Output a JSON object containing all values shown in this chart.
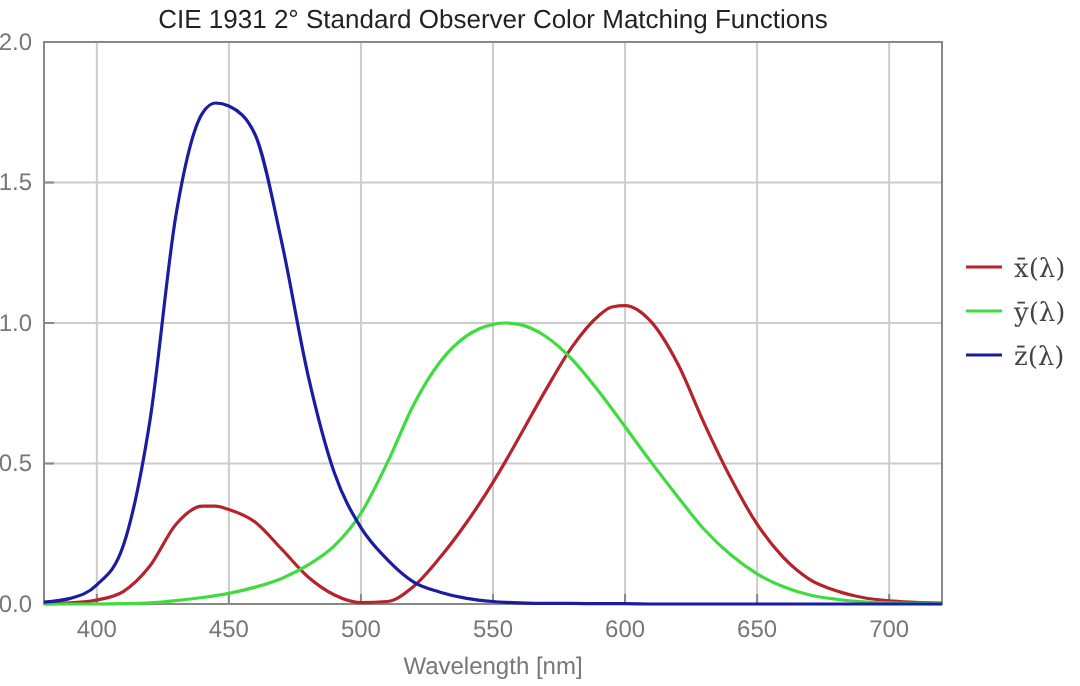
{
  "chart_data": {
    "type": "line",
    "title": "CIE 1931 2° Standard Observer Color Matching Functions",
    "xlabel": "Wavelength [nm]",
    "x": [
      380,
      390,
      400,
      410,
      420,
      430,
      440,
      445,
      450,
      460,
      470,
      480,
      490,
      500,
      510,
      520,
      530,
      540,
      550,
      555,
      560,
      570,
      580,
      590,
      595,
      600,
      610,
      620,
      630,
      640,
      650,
      660,
      670,
      680,
      690,
      700,
      710,
      720
    ],
    "series": [
      {
        "name": "x̄(λ)",
        "color": "#b5232d",
        "values": [
          0.001,
          0.004,
          0.014,
          0.044,
          0.134,
          0.284,
          0.348,
          0.348,
          0.336,
          0.291,
          0.195,
          0.096,
          0.032,
          0.005,
          0.009,
          0.063,
          0.166,
          0.29,
          0.433,
          0.512,
          0.595,
          0.762,
          0.916,
          1.026,
          1.057,
          1.062,
          1.003,
          0.854,
          0.642,
          0.448,
          0.284,
          0.165,
          0.087,
          0.047,
          0.023,
          0.011,
          0.006,
          0.003
        ]
      },
      {
        "name": "ȳ(λ)",
        "color": "#3fdc3f",
        "values": [
          0,
          0,
          0,
          0.001,
          0.004,
          0.012,
          0.023,
          0.03,
          0.038,
          0.06,
          0.091,
          0.139,
          0.208,
          0.323,
          0.503,
          0.71,
          0.862,
          0.954,
          0.995,
          1.0,
          0.995,
          0.952,
          0.87,
          0.757,
          0.695,
          0.631,
          0.503,
          0.381,
          0.265,
          0.175,
          0.107,
          0.061,
          0.032,
          0.017,
          0.008,
          0.004,
          0.002,
          0.001
        ]
      },
      {
        "name": "z̄(λ)",
        "color": "#1c1ca3",
        "values": [
          0.007,
          0.02,
          0.068,
          0.207,
          0.646,
          1.386,
          1.747,
          1.783,
          1.772,
          1.669,
          1.288,
          0.813,
          0.465,
          0.272,
          0.158,
          0.078,
          0.042,
          0.02,
          0.009,
          0.006,
          0.004,
          0.002,
          0.002,
          0.001,
          0.001,
          0.001,
          0,
          0,
          0,
          0,
          0,
          0,
          0,
          0,
          0,
          0,
          0,
          0
        ]
      }
    ],
    "xlim": [
      380,
      720
    ],
    "xticks": [
      400,
      450,
      500,
      550,
      600,
      650,
      700
    ],
    "ylim": [
      0,
      2
    ],
    "yticks": [
      {
        "value": 0,
        "label": "0.0"
      },
      {
        "value": 0.5,
        "label": "0.5"
      },
      {
        "value": 1,
        "label": "1.0"
      },
      {
        "value": 1.5,
        "label": "1.5"
      },
      {
        "value": 2,
        "label": "2.0"
      }
    ],
    "grid": true,
    "legend": "right",
    "marker": "none",
    "line_style": "solid"
  }
}
